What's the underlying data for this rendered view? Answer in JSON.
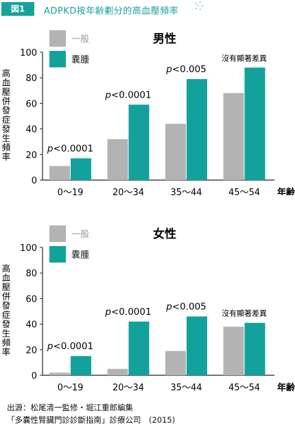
{
  "figure": {
    "tag": "図1",
    "title": "ADPKD按年齢劃分的高血壓頻率",
    "decor": "⁚⁛"
  },
  "colors": {
    "general": "#b3b3b3",
    "adpkd": "#13a29b",
    "accent": "#16a39b"
  },
  "chart_data": [
    {
      "type": "bar",
      "title": "男性",
      "categories": [
        "0〜19",
        "20〜34",
        "35〜44",
        "45〜54"
      ],
      "xlabel": "年齢",
      "ylabel": "高血壓併發症發生頻率",
      "ylim": [
        0,
        100
      ],
      "yticks": [
        0,
        20,
        40,
        60,
        80,
        100
      ],
      "legend_position": "top-left",
      "series": [
        {
          "name": "一般",
          "values": [
            11,
            32,
            44,
            68
          ]
        },
        {
          "name": "囊腫",
          "values": [
            17,
            59,
            79,
            88
          ]
        }
      ],
      "annotations": [
        {
          "category": "0〜19",
          "italic": "p",
          "text": "<0.0001"
        },
        {
          "category": "20〜34",
          "italic": "p",
          "text": "<0.0001"
        },
        {
          "category": "35〜44",
          "italic": "p",
          "text": "<0.005"
        },
        {
          "category": "45〜54",
          "italic": "",
          "text": "沒有顯著差異"
        }
      ]
    },
    {
      "type": "bar",
      "title": "女性",
      "categories": [
        "0〜19",
        "20〜34",
        "35〜44",
        "45〜54"
      ],
      "xlabel": "年齢",
      "ylabel": "高血壓併發症發生頻率",
      "ylim": [
        0,
        100
      ],
      "yticks": [
        0,
        20,
        40,
        60,
        80,
        100
      ],
      "legend_position": "top-left",
      "series": [
        {
          "name": "一般",
          "values": [
            2,
            5,
            19,
            38
          ]
        },
        {
          "name": "囊腫",
          "values": [
            15,
            42,
            46,
            41
          ]
        }
      ],
      "annotations": [
        {
          "category": "0〜19",
          "italic": "p",
          "text": "<0.0001"
        },
        {
          "category": "20〜34",
          "italic": "p",
          "text": "<0.0001"
        },
        {
          "category": "35〜44",
          "italic": "p",
          "text": "<0.005"
        },
        {
          "category": "45〜54",
          "italic": "",
          "text": "沒有顯著差異"
        }
      ]
    }
  ],
  "source": {
    "line1": "出源：松尾清一監修・堀江重郎編集",
    "line2": "「多囊性腎臟門診診斷指南」診療公司　(2015)"
  }
}
